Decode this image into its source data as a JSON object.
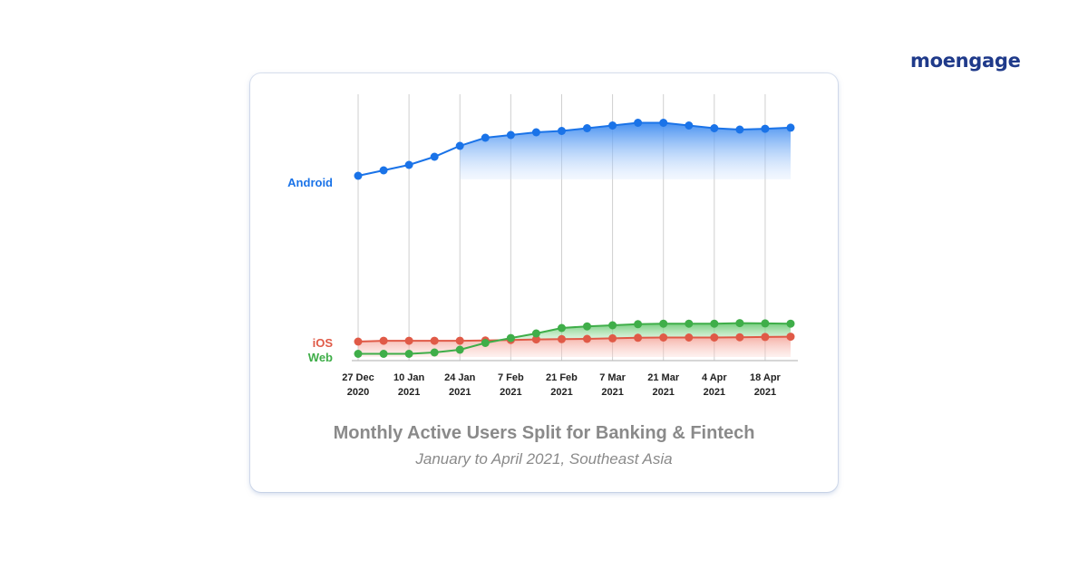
{
  "brand": {
    "name": "moengage"
  },
  "chart_data": {
    "type": "area",
    "title": "Monthly Active Users Split for Banking & Fintech",
    "subtitle": "January to April 2021, Southeast Asia",
    "xlabel": "",
    "ylabel": "",
    "x": [
      "27 Dec",
      "",
      "10 Jan",
      "",
      "24 Jan",
      "",
      "7 Feb",
      "",
      "21 Feb",
      "",
      "7 Mar",
      "",
      "21 Mar",
      "",
      "4 Apr",
      "",
      "18 Apr",
      ""
    ],
    "x_ticks": [
      {
        "label": "27 Dec",
        "year": "2020",
        "index": 0
      },
      {
        "label": "10 Jan",
        "year": "2021",
        "index": 2
      },
      {
        "label": "24 Jan",
        "year": "2021",
        "index": 4
      },
      {
        "label": "7 Feb",
        "year": "2021",
        "index": 6
      },
      {
        "label": "21 Feb",
        "year": "2021",
        "index": 8
      },
      {
        "label": "7 Mar",
        "year": "2021",
        "index": 10
      },
      {
        "label": "21 Mar",
        "year": "2021",
        "index": 12
      },
      {
        "label": "4 Apr",
        "year": "2021",
        "index": 14
      },
      {
        "label": "18 Apr",
        "year": "2021",
        "index": 16
      }
    ],
    "y_axis_shown": false,
    "ylim": [
      0,
      100
    ],
    "grid": {
      "vertical": true,
      "horizontal": false
    },
    "legend": "inline-left",
    "series": [
      {
        "name": "Android",
        "color": "#1a73e8",
        "values": [
          68,
          70,
          72,
          75,
          79,
          82,
          83,
          84,
          84.5,
          85.5,
          86.5,
          87.5,
          87.5,
          86.5,
          85.5,
          85,
          85.3,
          85.7
        ]
      },
      {
        "name": "iOS",
        "color": "#e05a47",
        "values": [
          7,
          7.3,
          7.3,
          7.3,
          7.3,
          7.4,
          7.6,
          7.8,
          7.9,
          8,
          8.2,
          8.4,
          8.5,
          8.5,
          8.5,
          8.6,
          8.7,
          8.8
        ]
      },
      {
        "name": "Web",
        "color": "#3fae49",
        "values": [
          2.5,
          2.5,
          2.5,
          3,
          4,
          6.5,
          8.3,
          10,
          12,
          12.6,
          13,
          13.4,
          13.6,
          13.6,
          13.6,
          13.8,
          13.7,
          13.6
        ]
      }
    ]
  }
}
